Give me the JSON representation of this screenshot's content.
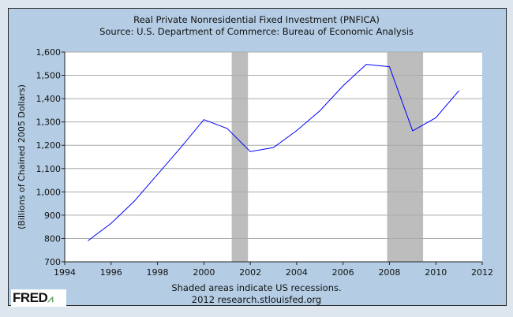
{
  "chart_data": {
    "type": "line",
    "title": "Real Private Nonresidential Fixed Investment (PNFICA)",
    "subtitle": "Source: U.S. Department of Commerce: Bureau of Economic Analysis",
    "xlabel": "",
    "ylabel": "(Billions of Chained 2005 Dollars)",
    "xlim": [
      1994,
      2012
    ],
    "ylim": [
      700,
      1600
    ],
    "xticks": [
      "1994",
      "1996",
      "1998",
      "2000",
      "2002",
      "2004",
      "2006",
      "2008",
      "2010",
      "2012"
    ],
    "yticks": [
      "700",
      "800",
      "900",
      "1,000",
      "1,100",
      "1,200",
      "1,300",
      "1,400",
      "1,500",
      "1,600"
    ],
    "grid": true,
    "series": [
      {
        "name": "PNFICA",
        "color": "#0000ff",
        "x": [
          1995,
          1996,
          1997,
          1998,
          1999,
          2000,
          2001,
          2002,
          2003,
          2004,
          2005,
          2006,
          2007,
          2008,
          2009,
          2010,
          2011
        ],
        "values": [
          790,
          865,
          960,
          1075,
          1190,
          1310,
          1272,
          1173,
          1190,
          1263,
          1348,
          1455,
          1547,
          1537,
          1262,
          1318,
          1435
        ]
      }
    ],
    "recessions": [
      [
        2001.2,
        2001.9
      ],
      [
        2007.9,
        2009.45
      ]
    ],
    "footnote": "Shaded areas indicate US recessions.",
    "source_line": "2012 research.stlouisfed.org"
  },
  "logo": "FRED"
}
